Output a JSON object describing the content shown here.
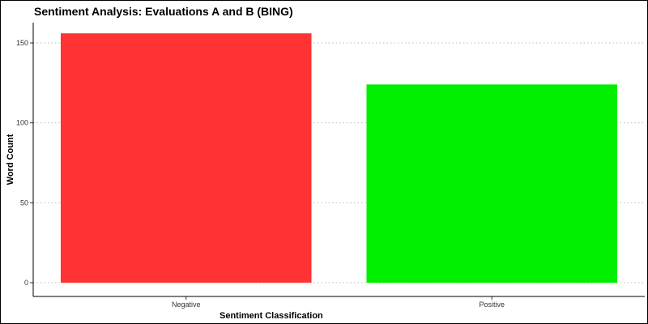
{
  "chart_data": {
    "type": "bar",
    "title": "Sentiment Analysis: Evaluations A and B (BING)",
    "xlabel": "Sentiment Classification",
    "ylabel": "Word Count",
    "categories": [
      "Negative",
      "Positive"
    ],
    "values": [
      156,
      124
    ],
    "colors": [
      "#ff3333",
      "#00ee00"
    ],
    "ylim": [
      0,
      165
    ],
    "yticks": [
      0,
      50,
      100,
      150
    ],
    "grid": "horizontal-dotted",
    "legend": "none"
  }
}
